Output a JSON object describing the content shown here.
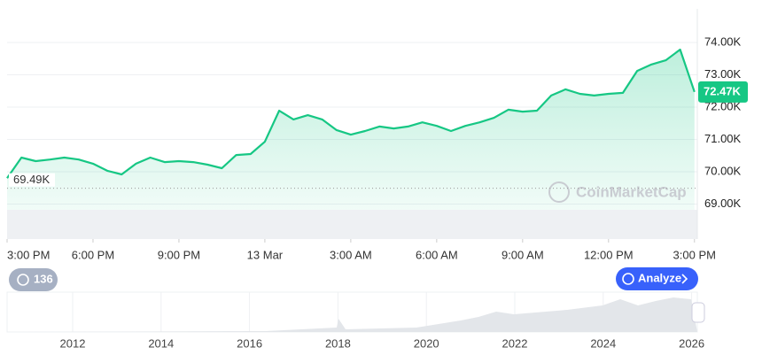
{
  "chart_data": {
    "type": "line",
    "watermark": "CoinMarketCap",
    "x": [
      0,
      0.5,
      1,
      1.5,
      2,
      2.5,
      3,
      3.5,
      4,
      4.5,
      5,
      5.5,
      6,
      6.5,
      7,
      7.5,
      8,
      8.5,
      9,
      9.5,
      10,
      10.5,
      11,
      11.5,
      12,
      12.5,
      13,
      13.5,
      14,
      14.5,
      15,
      15.5,
      16,
      16.5,
      17,
      17.5,
      18,
      18.5,
      19,
      19.5,
      20,
      20.5,
      21,
      21.5,
      22,
      22.5,
      23,
      23.5,
      24
    ],
    "series": [
      {
        "color": "#16c784",
        "values": [
          69800,
          70440,
          70330,
          70380,
          70440,
          70380,
          70250,
          70030,
          69920,
          70250,
          70440,
          70300,
          70330,
          70300,
          70220,
          70110,
          70520,
          70550,
          70930,
          71890,
          71620,
          71750,
          71620,
          71290,
          71150,
          71260,
          71400,
          71340,
          71400,
          71530,
          71420,
          71260,
          71420,
          71530,
          71670,
          71920,
          71860,
          71890,
          72360,
          72550,
          72410,
          72360,
          72410,
          72440,
          73120,
          73320,
          73450,
          73780,
          72470
        ]
      }
    ],
    "xlim": [
      0,
      24.1
    ],
    "xticks": [
      {
        "value": 0,
        "label": "3:00 PM"
      },
      {
        "value": 3,
        "label": "6:00 PM"
      },
      {
        "value": 6,
        "label": "9:00 PM"
      },
      {
        "value": 9,
        "label": "13 Mar"
      },
      {
        "value": 12,
        "label": "3:00 AM"
      },
      {
        "value": 15,
        "label": "6:00 AM"
      },
      {
        "value": 18,
        "label": "9:00 AM"
      },
      {
        "value": 21,
        "label": "12:00 PM"
      },
      {
        "value": 24,
        "label": "3:00 PM"
      }
    ],
    "ylim": [
      67920,
      75040
    ],
    "yticks": [
      {
        "value": 69000,
        "label": "69.00K"
      },
      {
        "value": 70000,
        "label": "70.00K"
      },
      {
        "value": 71000,
        "label": "71.00K"
      },
      {
        "value": 72000,
        "label": "72.00K"
      },
      {
        "value": 73000,
        "label": "73.00K"
      },
      {
        "value": 74000,
        "label": "74.00K"
      }
    ],
    "reference": {
      "value": 69490,
      "label": "69.49K"
    },
    "last_price": {
      "value": 72470,
      "label": "72.47K"
    },
    "history_button": "136",
    "analyze_button": "Analyze",
    "navigator": {
      "labels": [
        "2012",
        "2014",
        "2016",
        "2018",
        "2020",
        "2022",
        "2024",
        "2026"
      ]
    }
  }
}
